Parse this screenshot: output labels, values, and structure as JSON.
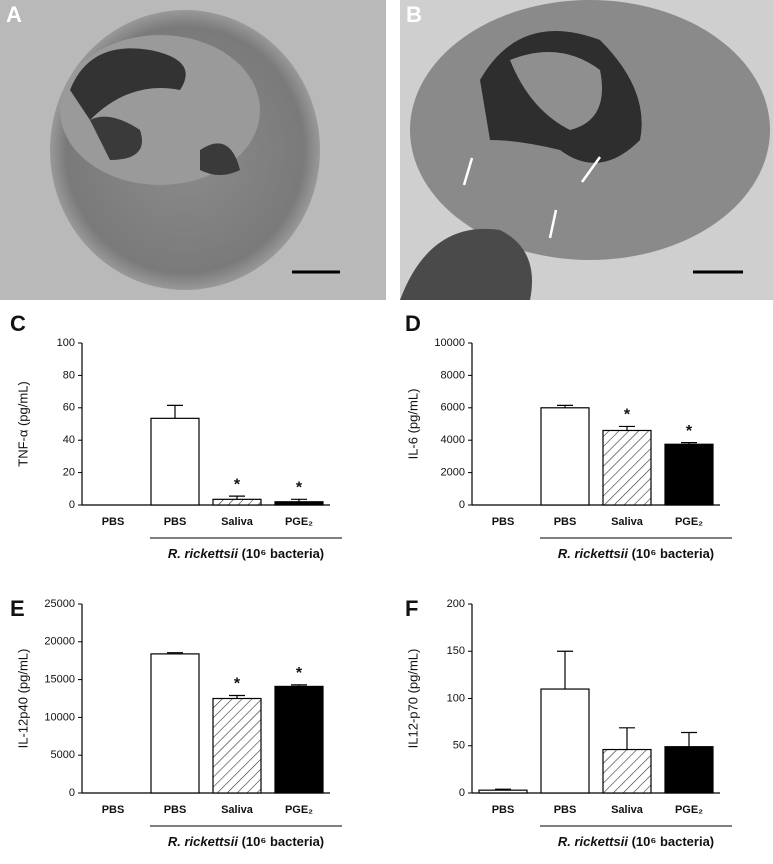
{
  "panels": [
    "A",
    "B"
  ],
  "chart_data": [
    {
      "type": "bar",
      "panel_label": "C",
      "ylabel": "TNF-α (pg/mL)",
      "xlabel": [
        "R. rickettsii",
        "(10⁶ bacteria)"
      ],
      "categories": [
        "PBS",
        "PBS",
        "Saliva",
        "PGE₂"
      ],
      "values": [
        0,
        53.5,
        3.5,
        2
      ],
      "errors": [
        0,
        8,
        2,
        1.5
      ],
      "markers": [
        null,
        null,
        "*",
        "*"
      ],
      "fills": [
        "white",
        "white",
        "hatch",
        "black"
      ],
      "ylim": [
        0,
        100
      ],
      "yticks": [
        0,
        20,
        40,
        60,
        80,
        100
      ]
    },
    {
      "type": "bar",
      "panel_label": "D",
      "ylabel": "IL-6 (pg/mL)",
      "xlabel": [
        "R. rickettsii",
        "(10⁶ bacteria)"
      ],
      "categories": [
        "PBS",
        "PBS",
        "Saliva",
        "PGE₂"
      ],
      "values": [
        0,
        6000,
        4600,
        3750
      ],
      "errors": [
        0,
        150,
        250,
        100
      ],
      "markers": [
        null,
        null,
        "*",
        "*"
      ],
      "fills": [
        "white",
        "white",
        "hatch",
        "black"
      ],
      "ylim": [
        0,
        10000
      ],
      "yticks": [
        0,
        2000,
        4000,
        6000,
        8000,
        10000
      ]
    },
    {
      "type": "bar",
      "panel_label": "E",
      "ylabel": "IL-12p40 (pg/mL)",
      "xlabel": [
        "R. rickettsii",
        "(10⁶ bacteria)"
      ],
      "categories": [
        "PBS",
        "PBS",
        "Saliva",
        "PGE₂"
      ],
      "values": [
        0,
        18400,
        12500,
        14100
      ],
      "errors": [
        0,
        150,
        400,
        200
      ],
      "markers": [
        null,
        null,
        "*",
        "*"
      ],
      "fills": [
        "white",
        "white",
        "hatch",
        "black"
      ],
      "ylim": [
        0,
        25000
      ],
      "yticks": [
        0,
        5000,
        10000,
        15000,
        20000,
        25000
      ]
    },
    {
      "type": "bar",
      "panel_label": "F",
      "ylabel": "IL12-p70 (pg/mL)",
      "xlabel": [
        "R. rickettsii",
        "(10⁶ bacteria)"
      ],
      "categories": [
        "PBS",
        "PBS",
        "Saliva",
        "PGE₂"
      ],
      "values": [
        3,
        110,
        46,
        49
      ],
      "errors": [
        1,
        40,
        23,
        15
      ],
      "fills": [
        "white",
        "white",
        "hatch",
        "black"
      ],
      "ylim": [
        0,
        200
      ],
      "yticks": [
        0,
        50,
        100,
        150,
        200
      ]
    }
  ]
}
